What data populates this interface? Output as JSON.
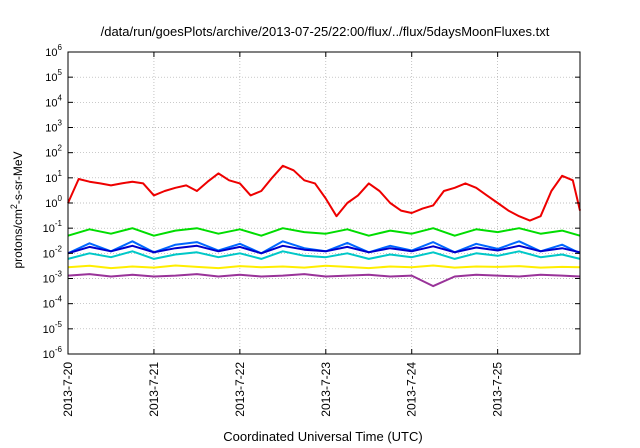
{
  "chart_data": {
    "type": "line",
    "title": "/data/run/goesPlots/archive/2013-07-25/22:00/flux/../flux/5daysMoonFluxes.txt",
    "xlabel": "Coordinated Universal Time (UTC)",
    "ylabel": {
      "pre": "protons/cm",
      "sup": "2",
      "post": "-s-sr-MeV"
    },
    "y_scale": "log",
    "ylim": [
      1e-06,
      1000000.0
    ],
    "xlim": [
      "2013-07-20",
      "2013-07-25T23:00"
    ],
    "grid": true,
    "legend": "none",
    "x_ticks": [
      "2013-7-20",
      "2013-7-21",
      "2013-7-22",
      "2013-7-23",
      "2013-7-24",
      "2013-7-25"
    ],
    "y_ticks": [
      {
        "base": "10",
        "exp": "-6"
      },
      {
        "base": "10",
        "exp": "-5"
      },
      {
        "base": "10",
        "exp": "-4"
      },
      {
        "base": "10",
        "exp": "-3"
      },
      {
        "base": "10",
        "exp": "-2"
      },
      {
        "base": "10",
        "exp": "-1"
      },
      {
        "base": "10",
        "exp": "0"
      },
      {
        "base": "10",
        "exp": "1"
      },
      {
        "base": "10",
        "exp": "2"
      },
      {
        "base": "10",
        "exp": "3"
      },
      {
        "base": "10",
        "exp": "4"
      },
      {
        "base": "10",
        "exp": "5"
      },
      {
        "base": "10",
        "exp": "6"
      }
    ],
    "series": [
      {
        "color": "#00dd00",
        "x": [
          "2013-07-20T00:00",
          "2013-07-20T06:00",
          "2013-07-20T12:00",
          "2013-07-20T18:00",
          "2013-07-21T00:00",
          "2013-07-21T06:00",
          "2013-07-21T12:00",
          "2013-07-21T18:00",
          "2013-07-22T00:00",
          "2013-07-22T06:00",
          "2013-07-22T12:00",
          "2013-07-22T18:00",
          "2013-07-23T00:00",
          "2013-07-23T06:00",
          "2013-07-23T12:00",
          "2013-07-23T18:00",
          "2013-07-24T00:00",
          "2013-07-24T06:00",
          "2013-07-24T12:00",
          "2013-07-24T18:00",
          "2013-07-25T00:00",
          "2013-07-25T06:00",
          "2013-07-25T12:00",
          "2013-07-25T18:00",
          "2013-07-25T23:00"
        ],
        "y": [
          0.05,
          0.09,
          0.06,
          0.1,
          0.05,
          0.08,
          0.1,
          0.06,
          0.09,
          0.05,
          0.1,
          0.07,
          0.06,
          0.09,
          0.05,
          0.08,
          0.06,
          0.1,
          0.05,
          0.09,
          0.07,
          0.1,
          0.06,
          0.08,
          0.05
        ]
      },
      {
        "color": "#00c8c8",
        "x": [
          "2013-07-20T00:00",
          "2013-07-20T06:00",
          "2013-07-20T12:00",
          "2013-07-20T18:00",
          "2013-07-21T00:00",
          "2013-07-21T06:00",
          "2013-07-21T12:00",
          "2013-07-21T18:00",
          "2013-07-22T00:00",
          "2013-07-22T06:00",
          "2013-07-22T12:00",
          "2013-07-22T18:00",
          "2013-07-23T00:00",
          "2013-07-23T06:00",
          "2013-07-23T12:00",
          "2013-07-23T18:00",
          "2013-07-24T00:00",
          "2013-07-24T06:00",
          "2013-07-24T12:00",
          "2013-07-24T18:00",
          "2013-07-25T00:00",
          "2013-07-25T06:00",
          "2013-07-25T12:00",
          "2013-07-25T18:00",
          "2013-07-25T23:00"
        ],
        "y": [
          0.006,
          0.01,
          0.007,
          0.012,
          0.006,
          0.009,
          0.011,
          0.007,
          0.01,
          0.006,
          0.012,
          0.008,
          0.007,
          0.01,
          0.006,
          0.009,
          0.007,
          0.011,
          0.006,
          0.01,
          0.008,
          0.012,
          0.007,
          0.009,
          0.006
        ]
      },
      {
        "color": "#0066ff",
        "x": [
          "2013-07-20T00:00",
          "2013-07-20T06:00",
          "2013-07-20T12:00",
          "2013-07-20T18:00",
          "2013-07-21T00:00",
          "2013-07-21T06:00",
          "2013-07-21T12:00",
          "2013-07-21T18:00",
          "2013-07-22T00:00",
          "2013-07-22T06:00",
          "2013-07-22T12:00",
          "2013-07-22T18:00",
          "2013-07-23T00:00",
          "2013-07-23T06:00",
          "2013-07-23T12:00",
          "2013-07-23T18:00",
          "2013-07-24T00:00",
          "2013-07-24T06:00",
          "2013-07-24T12:00",
          "2013-07-24T18:00",
          "2013-07-25T00:00",
          "2013-07-25T06:00",
          "2013-07-25T12:00",
          "2013-07-25T18:00",
          "2013-07-25T23:00"
        ],
        "y": [
          0.01,
          0.025,
          0.012,
          0.03,
          0.011,
          0.022,
          0.028,
          0.013,
          0.024,
          0.01,
          0.03,
          0.016,
          0.012,
          0.026,
          0.011,
          0.02,
          0.013,
          0.028,
          0.011,
          0.024,
          0.015,
          0.03,
          0.012,
          0.022,
          0.01
        ]
      },
      {
        "color": "#0000cc",
        "x": [
          "2013-07-20T00:00",
          "2013-07-20T06:00",
          "2013-07-20T12:00",
          "2013-07-20T18:00",
          "2013-07-21T00:00",
          "2013-07-21T06:00",
          "2013-07-21T12:00",
          "2013-07-21T18:00",
          "2013-07-22T00:00",
          "2013-07-22T06:00",
          "2013-07-22T12:00",
          "2013-07-22T18:00",
          "2013-07-23T00:00",
          "2013-07-23T06:00",
          "2013-07-23T12:00",
          "2013-07-23T18:00",
          "2013-07-24T00:00",
          "2013-07-24T06:00",
          "2013-07-24T12:00",
          "2013-07-24T18:00",
          "2013-07-25T00:00",
          "2013-07-25T06:00",
          "2013-07-25T12:00",
          "2013-07-25T18:00",
          "2013-07-25T23:00"
        ],
        "y": [
          0.01,
          0.018,
          0.012,
          0.02,
          0.011,
          0.016,
          0.02,
          0.012,
          0.018,
          0.01,
          0.02,
          0.014,
          0.012,
          0.018,
          0.011,
          0.016,
          0.012,
          0.019,
          0.011,
          0.017,
          0.013,
          0.02,
          0.012,
          0.016,
          0.011
        ]
      },
      {
        "color": "#ffee00",
        "x": [
          "2013-07-20T00:00",
          "2013-07-20T06:00",
          "2013-07-20T12:00",
          "2013-07-20T18:00",
          "2013-07-21T00:00",
          "2013-07-21T06:00",
          "2013-07-21T12:00",
          "2013-07-21T18:00",
          "2013-07-22T00:00",
          "2013-07-22T06:00",
          "2013-07-22T12:00",
          "2013-07-22T18:00",
          "2013-07-23T00:00",
          "2013-07-23T06:00",
          "2013-07-23T12:00",
          "2013-07-23T18:00",
          "2013-07-24T00:00",
          "2013-07-24T06:00",
          "2013-07-24T12:00",
          "2013-07-24T18:00",
          "2013-07-25T00:00",
          "2013-07-25T06:00",
          "2013-07-25T12:00",
          "2013-07-25T18:00",
          "2013-07-25T23:00"
        ],
        "y": [
          0.0028,
          0.0032,
          0.0026,
          0.003,
          0.0027,
          0.0033,
          0.0029,
          0.0026,
          0.0031,
          0.0028,
          0.003,
          0.0027,
          0.0032,
          0.0029,
          0.0026,
          0.003,
          0.0028,
          0.0033,
          0.0027,
          0.003,
          0.0029,
          0.0031,
          0.0027,
          0.0029,
          0.0028
        ]
      },
      {
        "color": "#993399",
        "x": [
          "2013-07-20T00:00",
          "2013-07-20T06:00",
          "2013-07-20T12:00",
          "2013-07-20T18:00",
          "2013-07-21T00:00",
          "2013-07-21T06:00",
          "2013-07-21T12:00",
          "2013-07-21T18:00",
          "2013-07-22T00:00",
          "2013-07-22T06:00",
          "2013-07-22T12:00",
          "2013-07-22T18:00",
          "2013-07-23T00:00",
          "2013-07-23T06:00",
          "2013-07-23T12:00",
          "2013-07-23T18:00",
          "2013-07-24T00:00",
          "2013-07-24T06:00",
          "2013-07-24T12:00",
          "2013-07-24T18:00",
          "2013-07-25T00:00",
          "2013-07-25T06:00",
          "2013-07-25T12:00",
          "2013-07-25T18:00",
          "2013-07-25T23:00"
        ],
        "y": [
          0.0013,
          0.0015,
          0.0012,
          0.0014,
          0.0012,
          0.0013,
          0.0015,
          0.0012,
          0.0014,
          0.0012,
          0.0013,
          0.0015,
          0.0012,
          0.0013,
          0.0014,
          0.0012,
          0.0013,
          0.0005,
          0.0012,
          0.0014,
          0.0013,
          0.0012,
          0.0014,
          0.0013,
          0.0012
        ]
      },
      {
        "color": "#ee0000",
        "x": [
          "2013-07-20T00:00",
          "2013-07-20T03:00",
          "2013-07-20T06:00",
          "2013-07-20T09:00",
          "2013-07-20T12:00",
          "2013-07-20T15:00",
          "2013-07-20T18:00",
          "2013-07-20T21:00",
          "2013-07-21T00:00",
          "2013-07-21T03:00",
          "2013-07-21T06:00",
          "2013-07-21T09:00",
          "2013-07-21T12:00",
          "2013-07-21T15:00",
          "2013-07-21T18:00",
          "2013-07-21T21:00",
          "2013-07-22T00:00",
          "2013-07-22T03:00",
          "2013-07-22T06:00",
          "2013-07-22T09:00",
          "2013-07-22T12:00",
          "2013-07-22T15:00",
          "2013-07-22T18:00",
          "2013-07-22T21:00",
          "2013-07-23T00:00",
          "2013-07-23T03:00",
          "2013-07-23T06:00",
          "2013-07-23T09:00",
          "2013-07-23T12:00",
          "2013-07-23T15:00",
          "2013-07-23T18:00",
          "2013-07-23T21:00",
          "2013-07-24T00:00",
          "2013-07-24T03:00",
          "2013-07-24T06:00",
          "2013-07-24T09:00",
          "2013-07-24T12:00",
          "2013-07-24T15:00",
          "2013-07-24T18:00",
          "2013-07-24T21:00",
          "2013-07-25T00:00",
          "2013-07-25T03:00",
          "2013-07-25T06:00",
          "2013-07-25T09:00",
          "2013-07-25T12:00",
          "2013-07-25T15:00",
          "2013-07-25T18:00",
          "2013-07-25T21:00",
          "2013-07-25T23:00"
        ],
        "y": [
          1.0,
          9,
          7,
          6,
          5,
          6,
          7,
          6,
          2.0,
          3,
          4,
          5,
          3.0,
          7,
          15,
          8,
          6.0,
          2,
          3,
          10,
          30,
          20,
          8,
          6,
          1.5,
          0.3,
          1,
          2,
          6,
          3,
          1,
          0.5,
          0.4,
          0.6,
          0.8,
          3,
          4,
          6,
          4,
          2,
          1.0,
          0.5,
          0.3,
          0.2,
          0.3,
          3,
          12,
          8,
          0.5
        ]
      }
    ]
  }
}
